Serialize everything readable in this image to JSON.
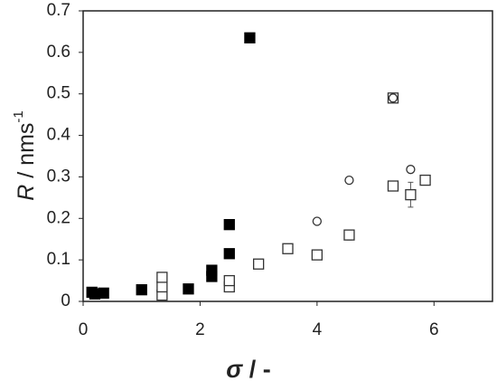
{
  "chart_data": {
    "type": "scatter",
    "xlabel_symbol": "σ",
    "xlabel": " / -",
    "ylabel_symbol": "R",
    "ylabel": " / nms",
    "ylabel_superscript": "-1",
    "xlim": [
      0,
      7
    ],
    "xticks": [
      0,
      2,
      4,
      6
    ],
    "ylim": [
      0,
      0.7
    ],
    "yticks": [
      0,
      0.1,
      0.2,
      0.3,
      0.4,
      0.5,
      0.6,
      0.7
    ],
    "grid": false,
    "series": [
      {
        "marker": "square",
        "filled": true,
        "color": "#000000",
        "x": [
          0.15,
          0.2,
          0.35,
          1.0,
          1.8,
          2.2,
          2.2,
          2.5,
          2.5,
          2.85
        ],
        "values": [
          0.022,
          0.018,
          0.02,
          0.028,
          0.03,
          0.06,
          0.075,
          0.115,
          0.185,
          0.635
        ]
      },
      {
        "marker": "square",
        "filled": false,
        "color": "#333333",
        "x": [
          1.35,
          1.35,
          1.35,
          2.5,
          2.5,
          3.0,
          3.5,
          4.0,
          4.55,
          5.3,
          5.3,
          5.6,
          5.85
        ],
        "values": [
          0.015,
          0.035,
          0.058,
          0.035,
          0.05,
          0.09,
          0.127,
          0.112,
          0.16,
          0.278,
          0.49,
          0.257,
          0.292
        ],
        "errors": [
          null,
          null,
          null,
          null,
          null,
          null,
          null,
          null,
          0.012,
          null,
          null,
          0.03,
          null
        ]
      },
      {
        "marker": "circle",
        "filled": false,
        "color": "#333333",
        "x": [
          4.0,
          4.55,
          5.3,
          5.6
        ],
        "values": [
          0.193,
          0.292,
          0.49,
          0.318
        ]
      }
    ]
  }
}
